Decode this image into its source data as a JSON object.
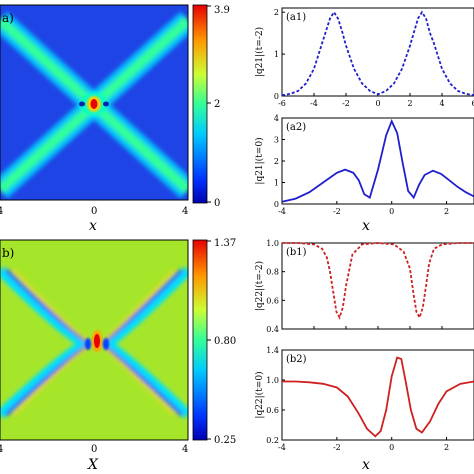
{
  "chart_data": [
    {
      "type": "heatmap",
      "panel_label": "a)",
      "xlabel": "x",
      "x_tick_labels": [
        "4",
        "0",
        "4"
      ],
      "x_range": [
        -4,
        4
      ],
      "colorbar": {
        "min": 0,
        "max": 3.9,
        "tick_labels": [
          "3.9",
          "2",
          "0"
        ],
        "tick_values": [
          3.9,
          2,
          0
        ]
      },
      "description_values": {
        "peak": 3.9,
        "background": 0.3,
        "band_level": 1.8
      }
    },
    {
      "type": "line",
      "panel_label": "(a1)",
      "ylabel": "|q21|(t=-2)",
      "xlim": [
        -6,
        6
      ],
      "ylim": [
        0,
        2.1
      ],
      "x_ticks": [
        -6,
        -4,
        -2,
        0,
        2,
        4,
        6
      ],
      "y_ticks": [
        0,
        1,
        2
      ],
      "series": [
        {
          "style": "dotted",
          "color": "#1f1fd0",
          "x": [
            -6,
            -5.5,
            -5,
            -4.5,
            -4,
            -3.5,
            -3,
            -2.75,
            -2.5,
            -2.25,
            -2,
            -1.5,
            -1,
            -0.5,
            0,
            0.5,
            1,
            1.5,
            2,
            2.5,
            2.75,
            3,
            3.25,
            3.5,
            4,
            4.5,
            5,
            5.5,
            6
          ],
          "y": [
            0.02,
            0.05,
            0.12,
            0.3,
            0.65,
            1.25,
            1.85,
            2.0,
            1.85,
            1.55,
            1.2,
            0.65,
            0.3,
            0.12,
            0.04,
            0.12,
            0.3,
            0.65,
            1.2,
            1.85,
            2.0,
            1.85,
            1.5,
            1.25,
            0.65,
            0.3,
            0.12,
            0.05,
            0.02
          ]
        }
      ]
    },
    {
      "type": "line",
      "panel_label": "(a2)",
      "ylabel": "|q21|(t=0)",
      "xlim": [
        -4,
        3
      ],
      "ylim": [
        0,
        4
      ],
      "x_ticks": [
        -4,
        -2,
        0,
        2
      ],
      "y_ticks": [
        0,
        1,
        2,
        3,
        4
      ],
      "series": [
        {
          "style": "solid",
          "color": "#1f1fd0",
          "x": [
            -4,
            -3.5,
            -3,
            -2.5,
            -2,
            -1.7,
            -1.4,
            -1.2,
            -1,
            -0.8,
            -0.5,
            -0.2,
            0,
            0.2,
            0.4,
            0.6,
            0.8,
            1,
            1.2,
            1.5,
            1.8,
            2.1,
            2.4,
            2.7,
            3
          ],
          "y": [
            0.1,
            0.25,
            0.55,
            1.0,
            1.45,
            1.6,
            1.45,
            1.1,
            0.45,
            0.3,
            1.6,
            3.2,
            3.85,
            3.3,
            1.9,
            0.6,
            0.3,
            0.9,
            1.35,
            1.55,
            1.4,
            1.1,
            0.8,
            0.55,
            0.35
          ]
        }
      ]
    },
    {
      "type": "heatmap",
      "panel_label": "b)",
      "xlabel": "X",
      "x_tick_labels": [
        "4",
        "0",
        "4"
      ],
      "x_range": [
        -4,
        4
      ],
      "colorbar": {
        "min": 0.25,
        "max": 1.37,
        "tick_labels": [
          "1.37",
          "0.80",
          "0.25"
        ],
        "tick_values": [
          1.37,
          0.8,
          0.25
        ]
      },
      "description_values": {
        "peak": 1.37,
        "background": 0.95,
        "band_level": 0.4
      }
    },
    {
      "type": "line",
      "panel_label": "(b1)",
      "ylabel": "|q22|(t=-2)",
      "xlim": [
        -6,
        6
      ],
      "ylim": [
        0.4,
        1.0
      ],
      "x_ticks": [
        -6,
        -4,
        -2,
        0,
        2,
        4,
        6
      ],
      "y_ticks": [
        0.4,
        0.6,
        0.8,
        1.0
      ],
      "series": [
        {
          "style": "dotted",
          "color": "#d01f1f",
          "x": [
            -6,
            -5,
            -4,
            -3.5,
            -3.2,
            -3,
            -2.8,
            -2.6,
            -2.4,
            -2.2,
            -2,
            -1.6,
            -1,
            0,
            1,
            1.6,
            2,
            2.2,
            2.4,
            2.6,
            2.8,
            3,
            3.2,
            3.5,
            4,
            5,
            6
          ],
          "y": [
            1.0,
            1.0,
            0.99,
            0.96,
            0.9,
            0.8,
            0.66,
            0.52,
            0.48,
            0.55,
            0.7,
            0.92,
            0.99,
            1.0,
            0.99,
            0.94,
            0.82,
            0.66,
            0.52,
            0.48,
            0.55,
            0.7,
            0.86,
            0.96,
            0.99,
            1.0,
            1.0
          ]
        }
      ]
    },
    {
      "type": "line",
      "panel_label": "(b2)",
      "ylabel": "|q22|(t=0)",
      "xlim": [
        -4,
        3
      ],
      "ylim": [
        0.2,
        1.4
      ],
      "x_ticks": [
        -4,
        -2,
        0,
        2
      ],
      "y_ticks": [
        0.2,
        0.6,
        1.0,
        1.4
      ],
      "series": [
        {
          "style": "solid",
          "color": "#d01f1f",
          "x": [
            -4,
            -3.5,
            -3,
            -2.5,
            -2,
            -1.6,
            -1.2,
            -0.9,
            -0.6,
            -0.4,
            -0.2,
            0,
            0.2,
            0.35,
            0.5,
            0.7,
            0.9,
            1.1,
            1.4,
            1.7,
            2,
            2.5,
            3
          ],
          "y": [
            0.98,
            0.98,
            0.97,
            0.95,
            0.9,
            0.78,
            0.55,
            0.35,
            0.25,
            0.32,
            0.6,
            1.05,
            1.3,
            1.28,
            1.0,
            0.6,
            0.35,
            0.3,
            0.45,
            0.68,
            0.85,
            0.95,
            0.98
          ]
        }
      ]
    }
  ]
}
